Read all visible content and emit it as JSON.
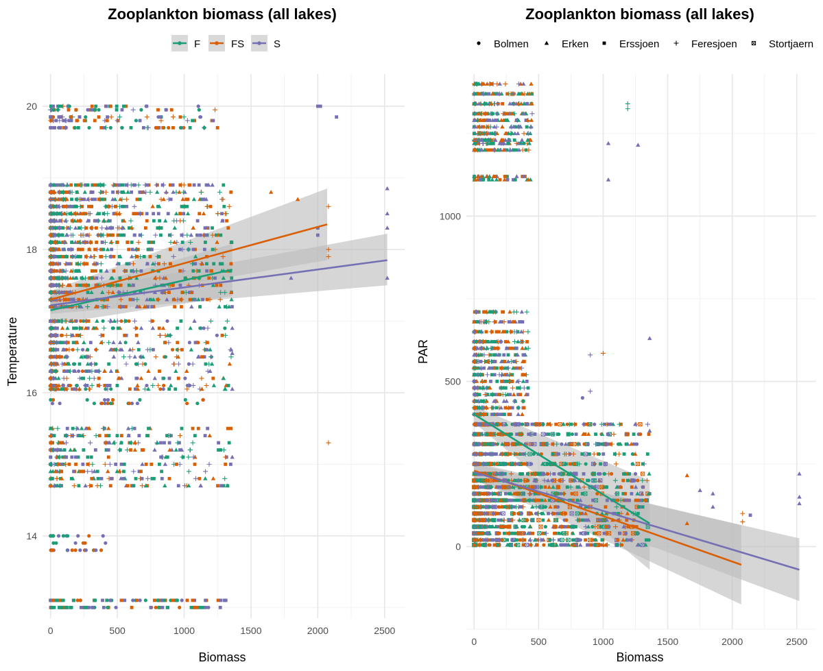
{
  "colors": {
    "F": "#1b9e77",
    "FS": "#d95f02",
    "S": "#7570b3",
    "ribbon": "#bdbdbd"
  },
  "chart_data": [
    {
      "type": "scatter",
      "title": "Zooplankton biomass (all lakes)",
      "xlabel": "Biomass",
      "ylabel": "Temperature",
      "xlim": [
        -60,
        2650
      ],
      "ylim": [
        12.85,
        20.45
      ],
      "xticks": [
        0,
        500,
        1000,
        1500,
        2000,
        2500
      ],
      "yticks": [
        14,
        16,
        18,
        20
      ],
      "legend": {
        "title": "",
        "entries": [
          "F",
          "FS",
          "S"
        ],
        "position": "top"
      },
      "grid": true,
      "fit_lines": [
        {
          "series": "F",
          "x": [
            0,
            1360
          ],
          "y": [
            17.15,
            17.72
          ],
          "ci_low": [
            16.95,
            17.35
          ],
          "ci_high": [
            17.35,
            18.08
          ]
        },
        {
          "series": "FS",
          "x": [
            0,
            2070
          ],
          "y": [
            17.3,
            18.35
          ],
          "ci_low": [
            17.18,
            17.85
          ],
          "ci_high": [
            17.42,
            18.85
          ]
        },
        {
          "series": "S",
          "x": [
            0,
            2520
          ],
          "y": [
            17.22,
            17.85
          ],
          "ci_low": [
            17.1,
            17.5
          ],
          "ci_high": [
            17.35,
            18.22
          ]
        }
      ],
      "outliers": [
        {
          "series": "S",
          "shape": "square",
          "x": 2000,
          "y": 20.0
        },
        {
          "series": "S",
          "shape": "square",
          "x": 2020,
          "y": 20.0
        },
        {
          "series": "S",
          "shape": "square",
          "x": 2140,
          "y": 19.85
        },
        {
          "series": "S",
          "shape": "triangle",
          "x": 2520,
          "y": 18.85
        },
        {
          "series": "S",
          "shape": "triangle",
          "x": 2520,
          "y": 18.5
        },
        {
          "series": "S",
          "shape": "triangle",
          "x": 2520,
          "y": 18.3
        },
        {
          "series": "S",
          "shape": "triangle",
          "x": 2520,
          "y": 17.6
        },
        {
          "series": "FS",
          "shape": "plus",
          "x": 2080,
          "y": 18.6
        },
        {
          "series": "FS",
          "shape": "plus",
          "x": 2080,
          "y": 18.0
        },
        {
          "series": "FS",
          "shape": "plus",
          "x": 2080,
          "y": 17.9
        },
        {
          "series": "FS",
          "shape": "plus",
          "x": 2080,
          "y": 15.3
        },
        {
          "series": "S",
          "shape": "square",
          "x": 2000,
          "y": 18.3
        },
        {
          "series": "S",
          "shape": "square",
          "x": 2000,
          "y": 18.2
        },
        {
          "series": "FS",
          "shape": "triangle",
          "x": 1650,
          "y": 18.8
        },
        {
          "series": "FS",
          "shape": "triangle",
          "x": 1850,
          "y": 18.7
        },
        {
          "series": "S",
          "shape": "triangle",
          "x": 1800,
          "y": 17.6
        },
        {
          "series": "F",
          "shape": "plus",
          "x": 1200,
          "y": 17.0
        },
        {
          "series": "F",
          "shape": "plus",
          "x": 1200,
          "y": 16.5
        },
        {
          "series": "S",
          "shape": "triangle",
          "x": 1360,
          "y": 16.9
        },
        {
          "series": "S",
          "shape": "triangle",
          "x": 1360,
          "y": 16.05
        },
        {
          "series": "S",
          "shape": "triangle",
          "x": 1360,
          "y": 15.1
        },
        {
          "series": "S",
          "shape": "triangle",
          "x": 1360,
          "y": 16.55
        }
      ]
    },
    {
      "type": "scatter",
      "title": "Zooplankton biomass (all lakes)",
      "xlabel": "Biomass",
      "ylabel": "PAR",
      "xlim": [
        -60,
        2650
      ],
      "ylim": [
        -250,
        1430
      ],
      "xticks": [
        0,
        500,
        1000,
        1500,
        2000,
        2500
      ],
      "yticks": [
        0,
        500,
        1000
      ],
      "legend": {
        "title": "",
        "entries": [
          "Bolmen",
          "Erken",
          "Erssjoen",
          "Feresjoen",
          "Stortjaern"
        ],
        "position": "top"
      },
      "grid": true,
      "fit_lines": [
        {
          "series": "F",
          "x": [
            0,
            1360
          ],
          "y": [
            400,
            70
          ],
          "ci_low": [
            375,
            -70
          ],
          "ci_high": [
            425,
            200
          ]
        },
        {
          "series": "FS",
          "x": [
            0,
            2070
          ],
          "y": [
            230,
            -55
          ],
          "ci_low": [
            205,
            -175
          ],
          "ci_high": [
            255,
            65
          ]
        },
        {
          "series": "S",
          "x": [
            0,
            2520
          ],
          "y": [
            225,
            -70
          ],
          "ci_low": [
            200,
            -165
          ],
          "ci_high": [
            250,
            25
          ]
        }
      ],
      "outliers": [
        {
          "series": "F",
          "shape": "plus",
          "x": 1190,
          "y": 1340
        },
        {
          "series": "F",
          "shape": "plus",
          "x": 1190,
          "y": 1325
        },
        {
          "series": "S",
          "shape": "triangle",
          "x": 1040,
          "y": 1220
        },
        {
          "series": "S",
          "shape": "triangle",
          "x": 1270,
          "y": 1215
        },
        {
          "series": "S",
          "shape": "triangle",
          "x": 1040,
          "y": 1110
        },
        {
          "series": "S",
          "shape": "triangle",
          "x": 1360,
          "y": 630
        },
        {
          "series": "S",
          "shape": "plus",
          "x": 900,
          "y": 580
        },
        {
          "series": "FS",
          "shape": "plus",
          "x": 1000,
          "y": 585
        },
        {
          "series": "S",
          "shape": "plus",
          "x": 900,
          "y": 470
        },
        {
          "series": "S",
          "shape": "circle",
          "x": 840,
          "y": 450
        },
        {
          "series": "S",
          "shape": "triangle",
          "x": 1040,
          "y": 340
        },
        {
          "series": "S",
          "shape": "triangle",
          "x": 1360,
          "y": 350
        },
        {
          "series": "S",
          "shape": "triangle",
          "x": 2520,
          "y": 220
        },
        {
          "series": "S",
          "shape": "triangle",
          "x": 2520,
          "y": 150
        },
        {
          "series": "S",
          "shape": "triangle",
          "x": 2520,
          "y": 130
        },
        {
          "series": "FS",
          "shape": "plus",
          "x": 2080,
          "y": 100
        },
        {
          "series": "FS",
          "shape": "plus",
          "x": 2080,
          "y": 75
        },
        {
          "series": "S",
          "shape": "square",
          "x": 2140,
          "y": 95
        },
        {
          "series": "FS",
          "shape": "triangle",
          "x": 1650,
          "y": 215
        },
        {
          "series": "S",
          "shape": "triangle",
          "x": 1750,
          "y": 170
        },
        {
          "series": "S",
          "shape": "triangle",
          "x": 1850,
          "y": 160
        },
        {
          "series": "FS",
          "shape": "triangle",
          "x": 1650,
          "y": 70
        },
        {
          "series": "S",
          "shape": "triangle",
          "x": 1850,
          "y": 120
        }
      ]
    }
  ]
}
